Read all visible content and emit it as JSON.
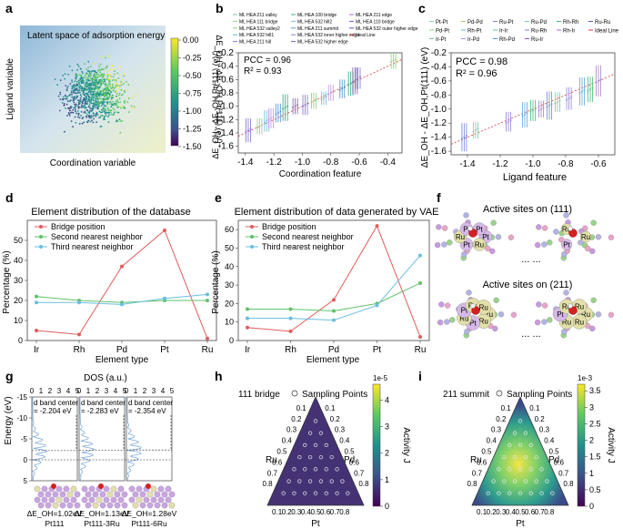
{
  "panels": {
    "a": {
      "letter": "a",
      "title": "Latent space of adsorption energy",
      "xlabel": "Coordination variable",
      "ylabel": "Ligand variable",
      "cbar_label": "ΔE_OH - ΔE_OH,Pt(111) (eV)",
      "cbar_ticks": [
        "0.00",
        "-0.25",
        "-0.50",
        "-0.75",
        "-1.00",
        "-1.25",
        "-1.50"
      ]
    },
    "b": {
      "letter": "b",
      "pcc": "PCC = 0.96",
      "r2": "R² = 0.93",
      "xlabel": "Coordination feature",
      "ylabel": "ΔE_OH - ΔE_OH,Pt(111) (eV)",
      "legend": [
        "ML HEA 211 valley",
        "ML HEA 111 bridge",
        "ML HEA 532 valley2",
        "ML HEA 532 hill1",
        "ML HEA 211 hill",
        "ML HEA 100 bridge",
        "ML HEA 532 hill2",
        "ML HEA 211 summit",
        "ML HEA 532 inner higher edge",
        "ML HEA 532 higher edge",
        "ML HEA 211 edge",
        "ML HEA 110 bridge",
        "ML HEA 532 outer higher edge",
        "Ideal Line"
      ]
    },
    "c": {
      "letter": "c",
      "pcc": "PCC = 0.98",
      "r2": "R² = 0.96",
      "xlabel": "Ligand feature",
      "ylabel": "ΔE_OH - ΔE_OH,Pt(111) (eV)",
      "legend": [
        "Pt-Pt",
        "Pd-Pd",
        "Ru-Pt",
        "Ru-Pd",
        "Rh-Rh",
        "Ru-Ru",
        "Pd-Pt",
        "Rh-Pt",
        "Ir-Ir",
        "Ru-Rh",
        "Rh-Ir",
        "Ideal Line",
        "Ir-Pt",
        "Ir-Pd",
        "Rh-Pd",
        "Ru-Ir"
      ]
    },
    "d": {
      "letter": "d",
      "title": "Element distribution of the database",
      "xlabel": "Element type",
      "ylabel": "Percentage (%)"
    },
    "e": {
      "letter": "e",
      "title": "Element distribution of data generated by VAE",
      "xlabel": "Element type",
      "ylabel": "Percentage (%)"
    },
    "f": {
      "letter": "f",
      "t111": "Active sites on (111)",
      "t211": "Active sites on (211)",
      "dots": "... ..."
    },
    "g": {
      "letter": "g",
      "title": "DOS (a.u.)",
      "ylabel": "Energy (eV)",
      "band_label": "d band center",
      "centers": [
        "= -2.204 eV",
        "= -2.283 eV",
        "= -2.354 eV"
      ],
      "energies": [
        "ΔE_OH=1.02eV",
        "ΔE_OH=1.13eV",
        "ΔE_OH=1.28eV"
      ],
      "names": [
        "Pt111",
        "Pt111-3Ru",
        "Pt111-6Ru"
      ]
    },
    "h": {
      "letter": "h",
      "tag": "111 bridge",
      "legend": "Sampling Points",
      "left": "Ru",
      "right": "Pd",
      "bottom": "Pt",
      "cbar_label": "Activity J",
      "cbar_exp": "1e-5"
    },
    "i": {
      "letter": "i",
      "tag": "211 summit",
      "legend": "Sampling Points",
      "left": "Ru",
      "right": "Pd",
      "bottom": "Pt",
      "cbar_label": "Activity J",
      "cbar_exp": "1e-3"
    }
  },
  "chart_data": [
    {
      "panel": "b",
      "type": "scatter",
      "xlim": [
        -1.45,
        -0.3
      ],
      "ylim": [
        -1.7,
        -0.2
      ],
      "xticks": [
        -1.4,
        -1.2,
        -1.0,
        -0.8,
        -0.6,
        -0.4
      ],
      "yticks": [
        -1.6,
        -1.4,
        -1.2,
        -1.0,
        -0.8,
        -0.6,
        -0.4,
        -0.2
      ],
      "x": [
        -1.38,
        -1.3,
        -1.25,
        -1.22,
        -1.17,
        -1.12,
        -1.05,
        -0.98,
        -0.92,
        -0.85,
        -0.8,
        -0.72,
        -0.66,
        -0.63,
        -0.61,
        -0.36
      ],
      "y": [
        -1.36,
        -1.3,
        -1.22,
        -1.18,
        -1.1,
        -1.02,
        -1.0,
        -0.98,
        -0.92,
        -0.88,
        -0.8,
        -0.74,
        -0.66,
        -0.62,
        -0.58,
        -0.32
      ],
      "err": [
        0.18,
        0.12,
        0.16,
        0.15,
        0.14,
        0.2,
        0.12,
        0.15,
        0.12,
        0.1,
        0.12,
        0.14,
        0.18,
        0.2,
        0.16,
        0.12
      ]
    },
    {
      "panel": "c",
      "type": "scatter",
      "xlim": [
        -1.5,
        -0.5
      ],
      "ylim": [
        -1.65,
        -0.2
      ],
      "xticks": [
        -1.4,
        -1.2,
        -1.0,
        -0.8,
        -0.6
      ],
      "yticks": [
        -1.6,
        -1.4,
        -1.2,
        -1.0,
        -0.8,
        -0.6,
        -0.4,
        -0.2
      ],
      "x": [
        -1.42,
        -1.35,
        -1.15,
        -1.05,
        -1.0,
        -0.95,
        -0.9,
        -0.85,
        -0.78,
        -0.7,
        -0.65,
        -0.6
      ],
      "y": [
        -1.4,
        -1.3,
        -1.18,
        -1.08,
        -1.02,
        -1.0,
        -0.95,
        -0.9,
        -0.85,
        -0.75,
        -0.72,
        -0.6
      ],
      "err": [
        0.2,
        0.12,
        0.14,
        0.18,
        0.15,
        0.12,
        0.2,
        0.14,
        0.16,
        0.2,
        0.18,
        0.22
      ]
    },
    {
      "panel": "d",
      "type": "line",
      "categories": [
        "Ir",
        "Rh",
        "Pd",
        "Pt",
        "Ru"
      ],
      "ylim": [
        0,
        60
      ],
      "yticks": [
        0,
        10,
        20,
        30,
        40,
        50
      ],
      "series": [
        {
          "name": "Bridge position",
          "color": "#e05c5c",
          "values": [
            5,
            3,
            37,
            55,
            1
          ]
        },
        {
          "name": "Second nearest neighbor",
          "color": "#5fc26a",
          "values": [
            22,
            20,
            19,
            20,
            20
          ]
        },
        {
          "name": "Third nearest neighbor",
          "color": "#6cbde0",
          "values": [
            19,
            19,
            18,
            21,
            23
          ]
        }
      ]
    },
    {
      "panel": "e",
      "type": "line",
      "categories": [
        "Ir",
        "Rh",
        "Pd",
        "Pt",
        "Ru"
      ],
      "ylim": [
        0,
        65
      ],
      "yticks": [
        0,
        10,
        20,
        30,
        40,
        50,
        60
      ],
      "series": [
        {
          "name": "Bridge position",
          "color": "#e05c5c",
          "values": [
            7,
            5,
            22,
            62,
            2
          ]
        },
        {
          "name": "Second nearest neighbor",
          "color": "#5fc26a",
          "values": [
            17,
            17,
            16,
            20,
            31
          ]
        },
        {
          "name": "Third nearest neighbor",
          "color": "#6cbde0",
          "values": [
            12,
            12,
            11,
            19,
            46
          ]
        }
      ]
    },
    {
      "panel": "h",
      "type": "heatmap",
      "cbar_ticks": [
        0,
        1,
        2,
        3,
        4
      ],
      "ticks": [
        0.1,
        0.2,
        0.3,
        0.4,
        0.5,
        0.6,
        0.7,
        0.8
      ]
    },
    {
      "panel": "i",
      "type": "heatmap",
      "cbar_ticks": [
        0,
        0.5,
        1.0,
        1.5,
        2.0,
        2.5,
        3.0,
        3.5
      ],
      "ticks": [
        0.1,
        0.2,
        0.3,
        0.4,
        0.5,
        0.6,
        0.7,
        0.8
      ]
    }
  ],
  "colors": {
    "viridis": [
      "#440154",
      "#3b528b",
      "#21918c",
      "#5ec962",
      "#fde725"
    ],
    "ideal": "#e03030"
  }
}
